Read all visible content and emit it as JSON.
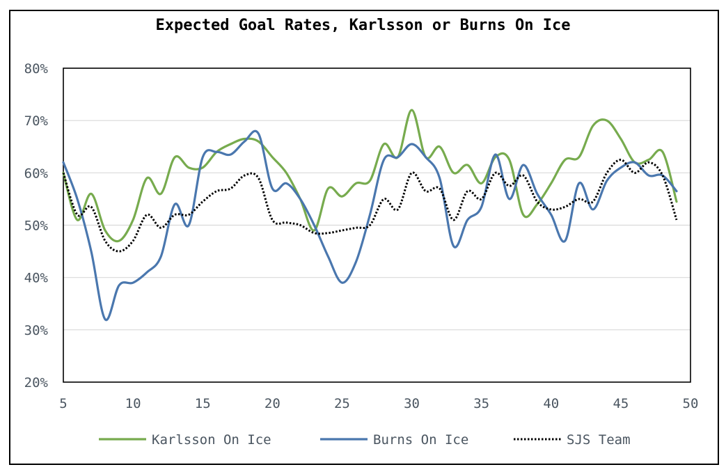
{
  "chart_data": {
    "type": "line",
    "title": "Expected Goal Rates, Karlsson or Burns On Ice",
    "xlabel": "",
    "ylabel": "",
    "xlim": [
      5,
      50
    ],
    "ylim": [
      0.2,
      0.8
    ],
    "x_ticks": [
      "5",
      "10",
      "15",
      "20",
      "25",
      "30",
      "35",
      "40",
      "45",
      "50"
    ],
    "y_ticks": [
      "20%",
      "30%",
      "40%",
      "50%",
      "60%",
      "70%",
      "80%"
    ],
    "grid": true,
    "legend_position": "bottom",
    "x": [
      5,
      6,
      7,
      8,
      9,
      10,
      11,
      12,
      13,
      14,
      15,
      16,
      17,
      18,
      19,
      20,
      21,
      22,
      23,
      24,
      25,
      26,
      27,
      28,
      29,
      30,
      31,
      32,
      33,
      34,
      35,
      36,
      37,
      38,
      39,
      40,
      41,
      42,
      43,
      44,
      45,
      46,
      47,
      48,
      49
    ],
    "series": [
      {
        "name": "Karlsson On Ice",
        "color": "#77ab4e",
        "style": "solid",
        "values": [
          0.6,
          0.51,
          0.56,
          0.49,
          0.47,
          0.51,
          0.59,
          0.56,
          0.63,
          0.61,
          0.61,
          0.64,
          0.655,
          0.665,
          0.66,
          0.63,
          0.6,
          0.55,
          0.49,
          0.57,
          0.555,
          0.58,
          0.585,
          0.655,
          0.63,
          0.72,
          0.63,
          0.65,
          0.6,
          0.615,
          0.58,
          0.63,
          0.625,
          0.52,
          0.54,
          0.58,
          0.625,
          0.63,
          0.69,
          0.7,
          0.665,
          0.62,
          0.625,
          0.64,
          0.545
        ]
      },
      {
        "name": "Burns On Ice",
        "color": "#4a77ae",
        "style": "solid",
        "values": [
          0.62,
          0.55,
          0.45,
          0.32,
          0.385,
          0.39,
          0.41,
          0.44,
          0.54,
          0.5,
          0.63,
          0.64,
          0.635,
          0.66,
          0.675,
          0.57,
          0.58,
          0.55,
          0.5,
          0.44,
          0.39,
          0.43,
          0.52,
          0.625,
          0.63,
          0.655,
          0.63,
          0.59,
          0.46,
          0.51,
          0.535,
          0.635,
          0.55,
          0.615,
          0.56,
          0.52,
          0.47,
          0.58,
          0.53,
          0.585,
          0.61,
          0.62,
          0.595,
          0.595,
          0.565
        ]
      },
      {
        "name": "SJS Team",
        "color": "#000000",
        "style": "dotted",
        "values": [
          0.6,
          0.52,
          0.535,
          0.47,
          0.45,
          0.47,
          0.52,
          0.495,
          0.52,
          0.52,
          0.545,
          0.565,
          0.57,
          0.595,
          0.59,
          0.51,
          0.505,
          0.5,
          0.485,
          0.485,
          0.49,
          0.495,
          0.5,
          0.55,
          0.53,
          0.6,
          0.565,
          0.57,
          0.51,
          0.565,
          0.55,
          0.6,
          0.575,
          0.595,
          0.545,
          0.53,
          0.535,
          0.55,
          0.545,
          0.6,
          0.625,
          0.6,
          0.62,
          0.595,
          0.51
        ]
      }
    ]
  }
}
